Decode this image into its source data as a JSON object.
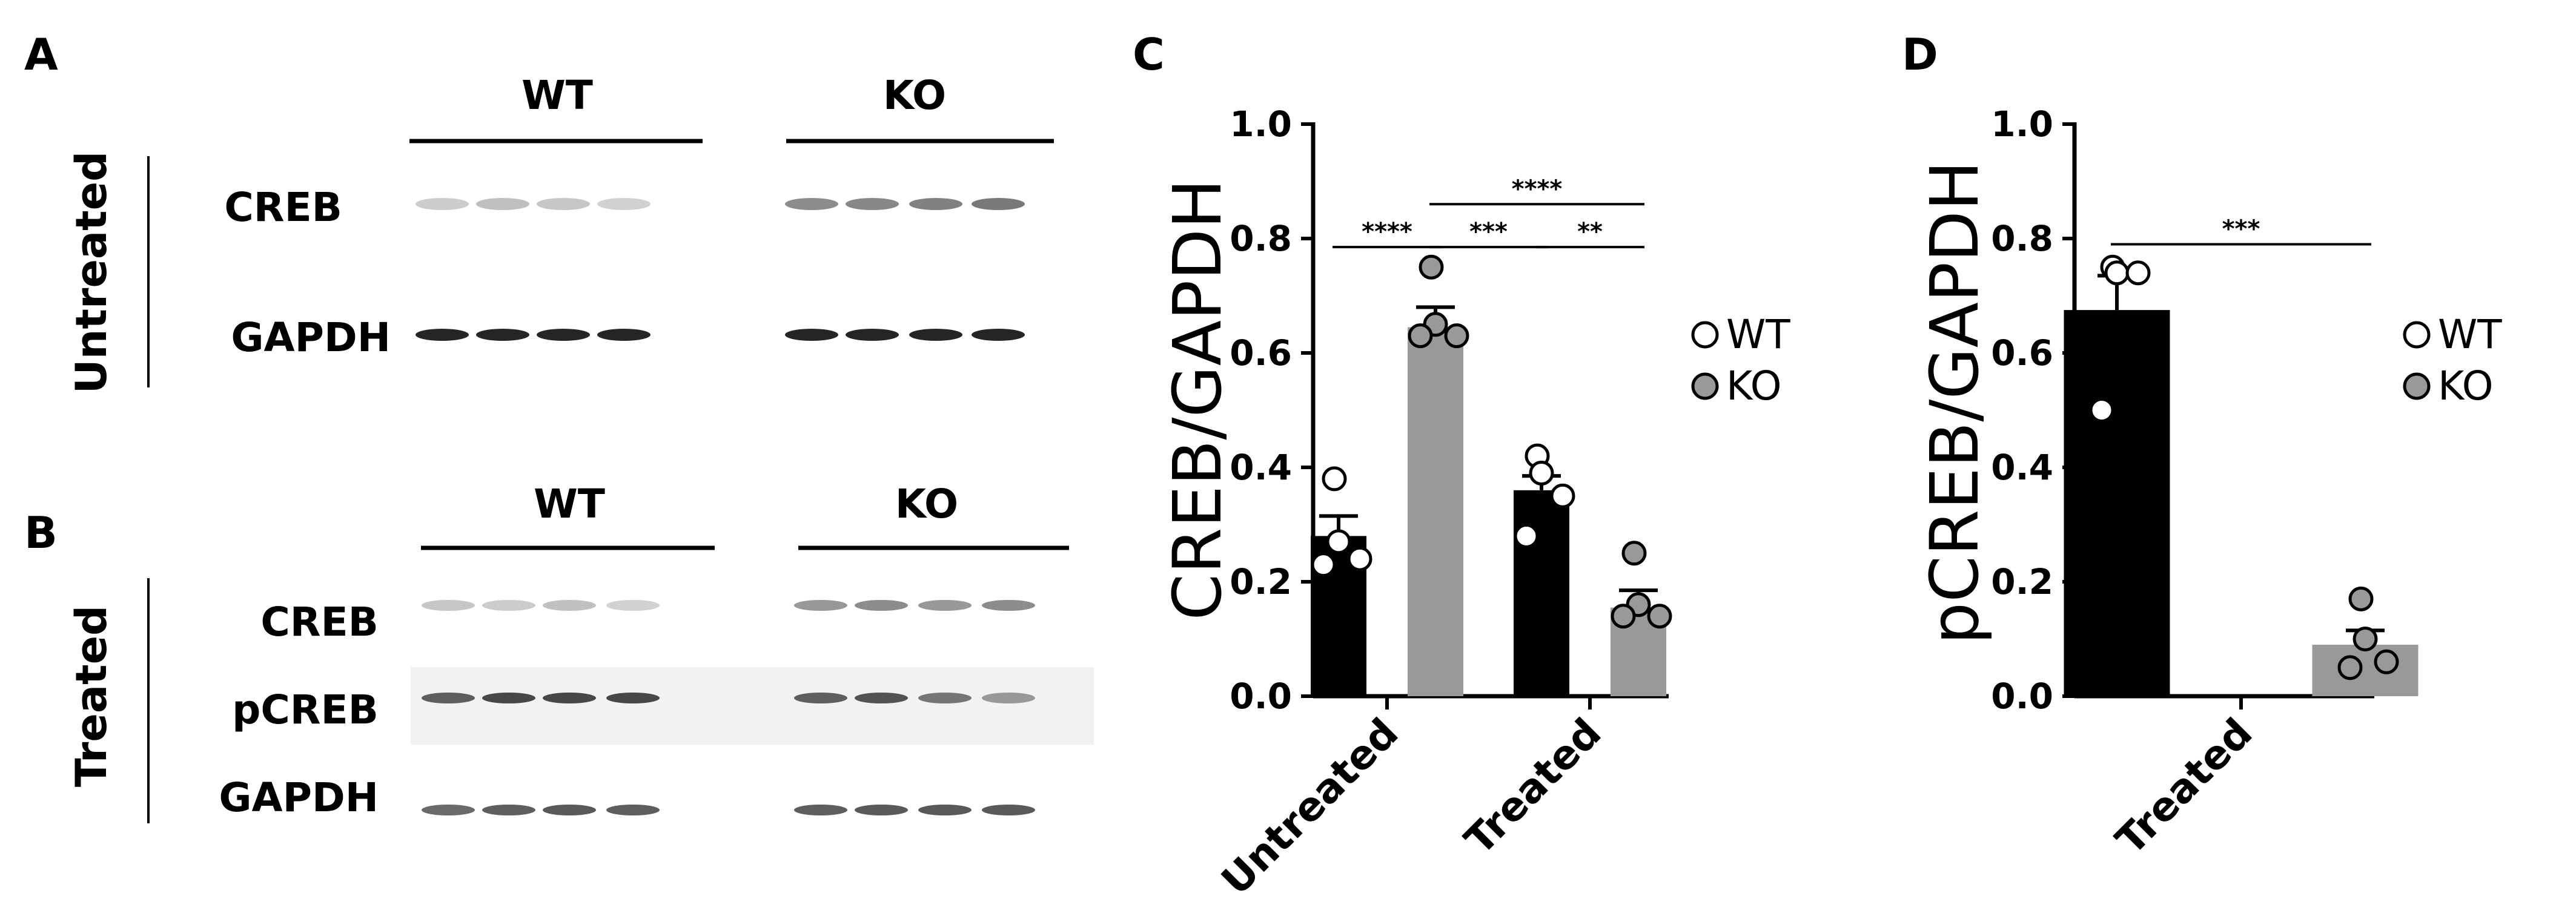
{
  "panel_labels": {
    "a": "A",
    "b": "B",
    "c": "C",
    "d": "D"
  },
  "blot_untreated": {
    "side_label": "Untreated",
    "groups": [
      "WT",
      "KO"
    ],
    "rows": [
      {
        "label": "CREB",
        "band_intensity": [
          0.22,
          0.28,
          0.25,
          0.2,
          0.5,
          0.52,
          0.55,
          0.58
        ]
      },
      {
        "label": "GAPDH",
        "band_intensity": [
          0.95,
          0.95,
          0.95,
          0.95,
          0.95,
          0.95,
          0.95,
          0.95
        ]
      }
    ]
  },
  "blot_treated": {
    "side_label": "Treated",
    "groups": [
      "WT",
      "KO"
    ],
    "rows": [
      {
        "label": "CREB",
        "band_intensity": [
          0.25,
          0.22,
          0.27,
          0.2,
          0.45,
          0.5,
          0.45,
          0.5
        ]
      },
      {
        "label": "pCREB",
        "band_intensity": [
          0.7,
          0.8,
          0.8,
          0.8,
          0.7,
          0.75,
          0.6,
          0.45
        ]
      },
      {
        "label": "GAPDH",
        "band_intensity": [
          0.65,
          0.7,
          0.72,
          0.7,
          0.7,
          0.72,
          0.72,
          0.72
        ]
      }
    ]
  },
  "legend": [
    {
      "label": "WT",
      "color": "#ffffff"
    },
    {
      "label": "KO",
      "color": "#999999"
    }
  ],
  "chart_data": [
    {
      "type": "bar",
      "panel": "C",
      "ylabel": "CREB/GAPDH",
      "ylim": [
        0,
        1.0
      ],
      "yticks": [
        "0.0",
        "0.2",
        "0.4",
        "0.6",
        "0.8",
        "1.0"
      ],
      "categories": [
        "Untreated",
        "Treated"
      ],
      "series": [
        {
          "name": "WT",
          "color": "#000000",
          "values": [
            0.28,
            0.36
          ],
          "errors": [
            0.035,
            0.025
          ],
          "points": [
            [
              0.38,
              0.27,
              0.24,
              0.23
            ],
            [
              0.42,
              0.39,
              0.35,
              0.28
            ]
          ]
        },
        {
          "name": "KO",
          "color": "#999999",
          "values": [
            0.645,
            0.155
          ],
          "errors": [
            0.035,
            0.03
          ],
          "points": [
            [
              0.75,
              0.65,
              0.63,
              0.63
            ],
            [
              0.25,
              0.16,
              0.14,
              0.14
            ]
          ]
        }
      ],
      "significance": [
        {
          "from": [
            0,
            0
          ],
          "to": [
            0,
            1
          ],
          "y": 0.785,
          "label": "****"
        },
        {
          "from": [
            0,
            1
          ],
          "to": [
            1,
            0
          ],
          "y": 0.785,
          "label": "***"
        },
        {
          "from": [
            1,
            0
          ],
          "to": [
            1,
            1
          ],
          "y": 0.785,
          "label": "**"
        },
        {
          "from": [
            0,
            1
          ],
          "to": [
            1,
            1
          ],
          "y": 0.86,
          "label": "****"
        }
      ]
    },
    {
      "type": "bar",
      "panel": "D",
      "ylabel": "pCREB/GAPDH",
      "ylim": [
        0,
        1.0
      ],
      "yticks": [
        "0.0",
        "0.2",
        "0.4",
        "0.6",
        "0.8",
        "1.0"
      ],
      "categories": [
        "Treated"
      ],
      "series": [
        {
          "name": "WT",
          "color": "#000000",
          "values": [
            0.675
          ],
          "errors": [
            0.06
          ],
          "points": [
            [
              0.75,
              0.74,
              0.74,
              0.5
            ]
          ]
        },
        {
          "name": "KO",
          "color": "#999999",
          "values": [
            0.09
          ],
          "errors": [
            0.025
          ],
          "points": [
            [
              0.17,
              0.1,
              0.06,
              0.05
            ]
          ]
        }
      ],
      "significance": [
        {
          "from": [
            0,
            0
          ],
          "to": [
            0,
            1
          ],
          "y": 0.79,
          "label": "***"
        }
      ]
    }
  ]
}
